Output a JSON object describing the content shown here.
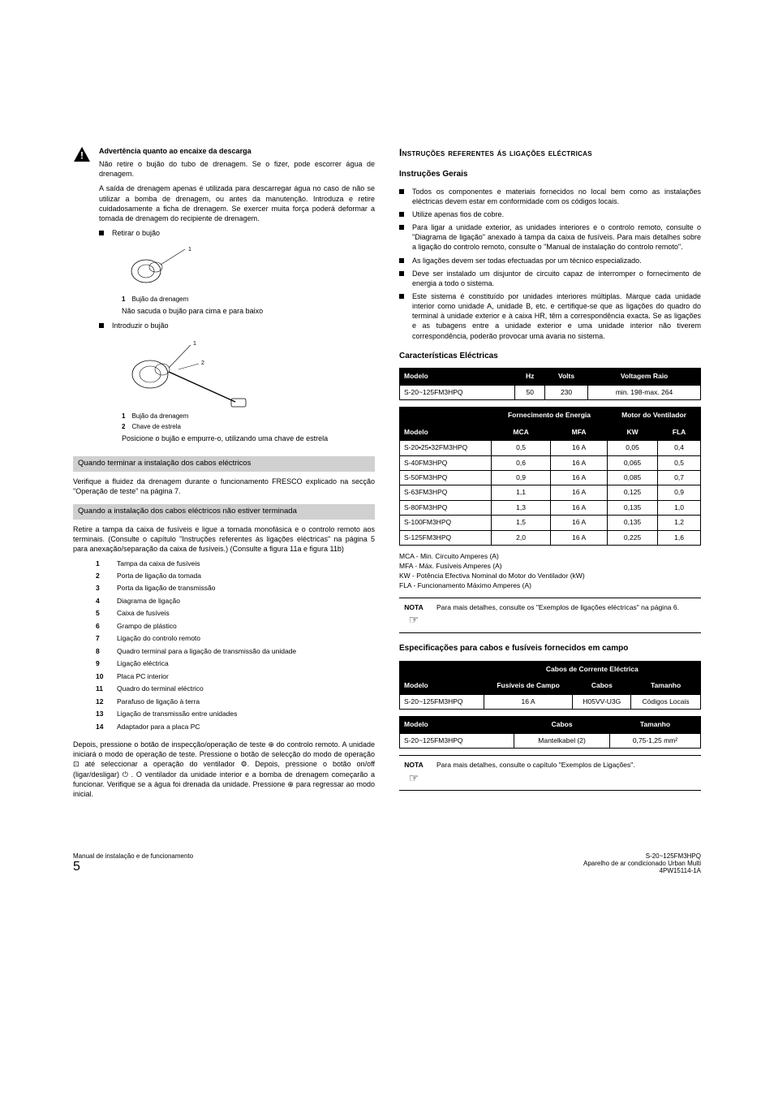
{
  "left": {
    "warning_title": "Advertência quanto ao encaixe da descarga",
    "warning_p1": "Não retire o bujão do tubo de drenagem. Se o fizer, pode escorrer água de drenagem.",
    "warning_p2": "A saída de drenagem apenas é utilizada para descarregar água no caso de não se utilizar a bomba de drenagem, ou antes da manutenção. Introduza e retire cuidadosamente a ficha de drenagem. Se exercer muita força poderá deformar a tomada de drenagem do recipiente de drenagem.",
    "bullet_remove": "Retirar o bujão",
    "fig1_label1_num": "1",
    "fig1_label1_text": "Bujão da drenagem",
    "fig1_note": "Não sacuda o bujão para cima e para baixo",
    "bullet_insert": "Introduzir o bujão",
    "fig2_label1_num": "1",
    "fig2_label1_text": "Bujão da drenagem",
    "fig2_label2_num": "2",
    "fig2_label2_text": "Chave de estrela",
    "fig2_note": "Posicione o bujão e empurre-o, utilizando uma chave de estrela",
    "section1": "Quando terminar a instalação dos cabos eléctricos",
    "section1_text": "Verifique a fluidez da drenagem durante o funcionamento FRESCO explicado na secção \"Operação de teste\" na página 7.",
    "section2": "Quando a instalação dos cabos eléctricos não estiver terminada",
    "section2_text": "Retire a tampa da caixa de fusíveis e ligue a tomada monofásica e o controlo remoto aos terminais. (Consulte o capítulo \"Instruções referentes ás ligações eléctricas\" na página 5 para anexação/separação da caixa de fusíveis.) (Consulte a figura 11a e figura 11b)",
    "numlist": [
      {
        "n": "1",
        "t": "Tampa da caixa de fusíveis"
      },
      {
        "n": "2",
        "t": "Porta de ligação da tomada"
      },
      {
        "n": "3",
        "t": "Porta da ligação de transmissão"
      },
      {
        "n": "4",
        "t": "Diagrama de ligação"
      },
      {
        "n": "5",
        "t": "Caixa de fusíveis"
      },
      {
        "n": "6",
        "t": "Grampo de plástico"
      },
      {
        "n": "7",
        "t": "Ligação do controlo remoto"
      },
      {
        "n": "8",
        "t": "Quadro terminal para a ligação de transmissão da unidade"
      },
      {
        "n": "9",
        "t": "Ligação eléctrica"
      },
      {
        "n": "10",
        "t": "Placa PC interior"
      },
      {
        "n": "11",
        "t": "Quadro do terminal eléctrico"
      },
      {
        "n": "12",
        "t": "Parafuso de ligação à terra"
      },
      {
        "n": "13",
        "t": "Ligação de transmissão entre unidades"
      },
      {
        "n": "14",
        "t": "Adaptador para a placa PC"
      }
    ],
    "final_para": "Depois, pressione o botão de inspecção/operação de teste ⊕ do controlo remoto. A unidade iniciará o modo de operação de teste. Pressione o botão de selecção do modo de operação ⊡ até seleccionar a operação do ventilador ⚙. Depois, pressione o botão on/off (ligar/desligar) ⏻ . O ventilador da unidade interior e a bomba de drenagem começarão a funcionar. Verifique se a água foi drenada da unidade. Pressione ⊕ para regressar ao modo inicial."
  },
  "right": {
    "h1": "Instruções referentes ás ligações eléctricas",
    "h2_general": "Instruções Gerais",
    "general_bullets": [
      "Todos os componentes e materiais fornecidos no local bem como as instalações eléctricas devem estar em conformidade com os códigos locais.",
      "Utilize apenas fios de cobre.",
      "Para ligar a unidade exterior, as unidades interiores e o controlo remoto, consulte o \"Diagrama de ligação\" anexado à tampa da caixa de fusíveis. Para mais detalhes sobre a ligação do controlo remoto, consulte o \"Manual de instalação do controlo remoto\".",
      "As ligações devem ser todas efectuadas por um técnico especializado.",
      "Deve ser instalado um disjuntor de circuito capaz de interromper o fornecimento de energia a todo o sistema.",
      "Este sistema é constituído por unidades interiores múltiplas. Marque cada unidade interior como unidade A, unidade B, etc. e certifique-se que as ligações do quadro do terminal à unidade exterior e à caixa HR, têm a correspondência exacta. Se as ligações e as tubagens entre a unidade exterior e uma unidade interior não tiverem correspondência, poderão provocar uma avaria no sistema."
    ],
    "h2_elec": "Características Eléctricas",
    "table1": {
      "headers": [
        "Modelo",
        "Hz",
        "Volts",
        "Voltagem Raio"
      ],
      "row": [
        "S-20~125FM3HPQ",
        "50",
        "230",
        "min. 198-max. 264"
      ]
    },
    "table2": {
      "h_supply": "Fornecimento de Energia",
      "h_motor": "Motor do Ventilador",
      "h_model": "Modelo",
      "h_mca": "MCA",
      "h_mfa": "MFA",
      "h_kw": "KW",
      "h_fla": "FLA",
      "rows": [
        [
          "S-20•25•32FM3HPQ",
          "0,5",
          "16 A",
          "0,05",
          "0,4"
        ],
        [
          "S-40FM3HPQ",
          "0,6",
          "16 A",
          "0,065",
          "0,5"
        ],
        [
          "S-50FM3HPQ",
          "0,9",
          "16 A",
          "0,085",
          "0,7"
        ],
        [
          "S-63FM3HPQ",
          "1,1",
          "16 A",
          "0,125",
          "0,9"
        ],
        [
          "S-80FM3HPQ",
          "1,3",
          "16 A",
          "0,135",
          "1,0"
        ],
        [
          "S-100FM3HPQ",
          "1,5",
          "16 A",
          "0,135",
          "1,2"
        ],
        [
          "S-125FM3HPQ",
          "2,0",
          "16 A",
          "0,225",
          "1,6"
        ]
      ]
    },
    "defs": [
      "MCA - Min. Circuito Amperes (A)",
      "MFA - Máx. Fusíveis Amperes (A)",
      "KW - Potência Efectiva Nominal do Motor do Ventilador (kW)",
      "FLA - Funcionamento Máximo Amperes (A)"
    ],
    "note1_label": "NOTA",
    "note1_text": "Para mais detalhes, consulte os \"Exemplos de ligações eléctricas\" na página 6.",
    "h2_cable": "Especificações para cabos e fusíveis fornecidos em campo",
    "table3": {
      "h_top": "Cabos de Corrente Eléctrica",
      "h_model": "Modelo",
      "h_fuse": "Fusíveis de Campo",
      "h_cable": "Cabos",
      "h_size": "Tamanho",
      "row": [
        "S-20~125FM3HPQ",
        "16 A",
        "H05VV-U3G",
        "Códigos Locais"
      ]
    },
    "table4": {
      "h_model": "Modelo",
      "h_cable": "Cabos",
      "h_size": "Tamanho",
      "row": [
        "S-20~125FM3HPQ",
        "Mantelkabel (2)",
        "0,75-1,25 mm²"
      ]
    },
    "note2_label": "NOTA",
    "note2_text": "Para mais detalhes, consulte o capítulo \"Exemplos de Ligações\"."
  },
  "footer": {
    "left_line1": "Manual de instalação e de funcionamento",
    "left_page": "5",
    "right_line1": "S-20~125FM3HPQ",
    "right_line2": "Aparelho de ar condicionado Urban Multi",
    "right_line3": "4PW15114-1A"
  }
}
